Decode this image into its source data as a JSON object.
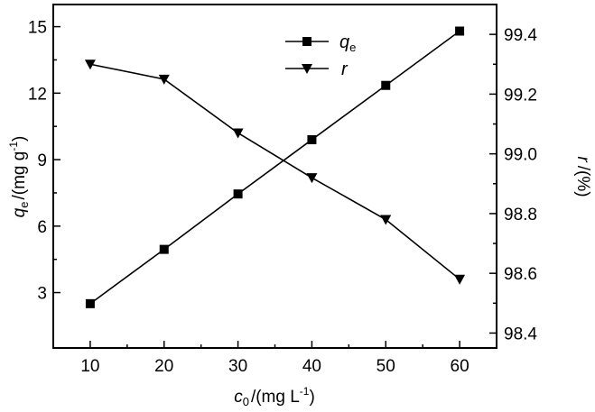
{
  "chart_data": {
    "type": "line",
    "x": [
      10,
      20,
      30,
      40,
      50,
      60
    ],
    "xlabel": {
      "symbol": "c",
      "sub": "0",
      "unit": "/(mg L",
      "sup": "-1",
      "close": ")"
    },
    "xlim": [
      5,
      65
    ],
    "xticks": [
      "10",
      "20",
      "30",
      "40",
      "50",
      "60"
    ],
    "y_left": {
      "label": {
        "symbol": "q",
        "sub": "e",
        "unit": "/(mg g",
        "sup": "-1",
        "close": ")"
      },
      "lim": [
        0.5,
        16
      ],
      "ticks": [
        "3",
        "6",
        "9",
        "12",
        "15"
      ]
    },
    "y_right": {
      "label": {
        "symbol": "r",
        "unit": "/(%)"
      },
      "lim": [
        98.35,
        99.5
      ],
      "ticks": [
        "98.4",
        "98.6",
        "98.8",
        "99.0",
        "99.2",
        "99.4"
      ]
    },
    "series": [
      {
        "name": "q",
        "sub": "e",
        "axis": "left",
        "marker": "square",
        "values": [
          2.5,
          4.95,
          7.45,
          9.9,
          12.35,
          14.8
        ]
      },
      {
        "name": "r",
        "axis": "right",
        "marker": "triangle-down",
        "values": [
          99.3,
          99.25,
          99.07,
          98.92,
          98.78,
          98.58
        ]
      }
    ],
    "legend_position": "top-center",
    "grid": false
  }
}
